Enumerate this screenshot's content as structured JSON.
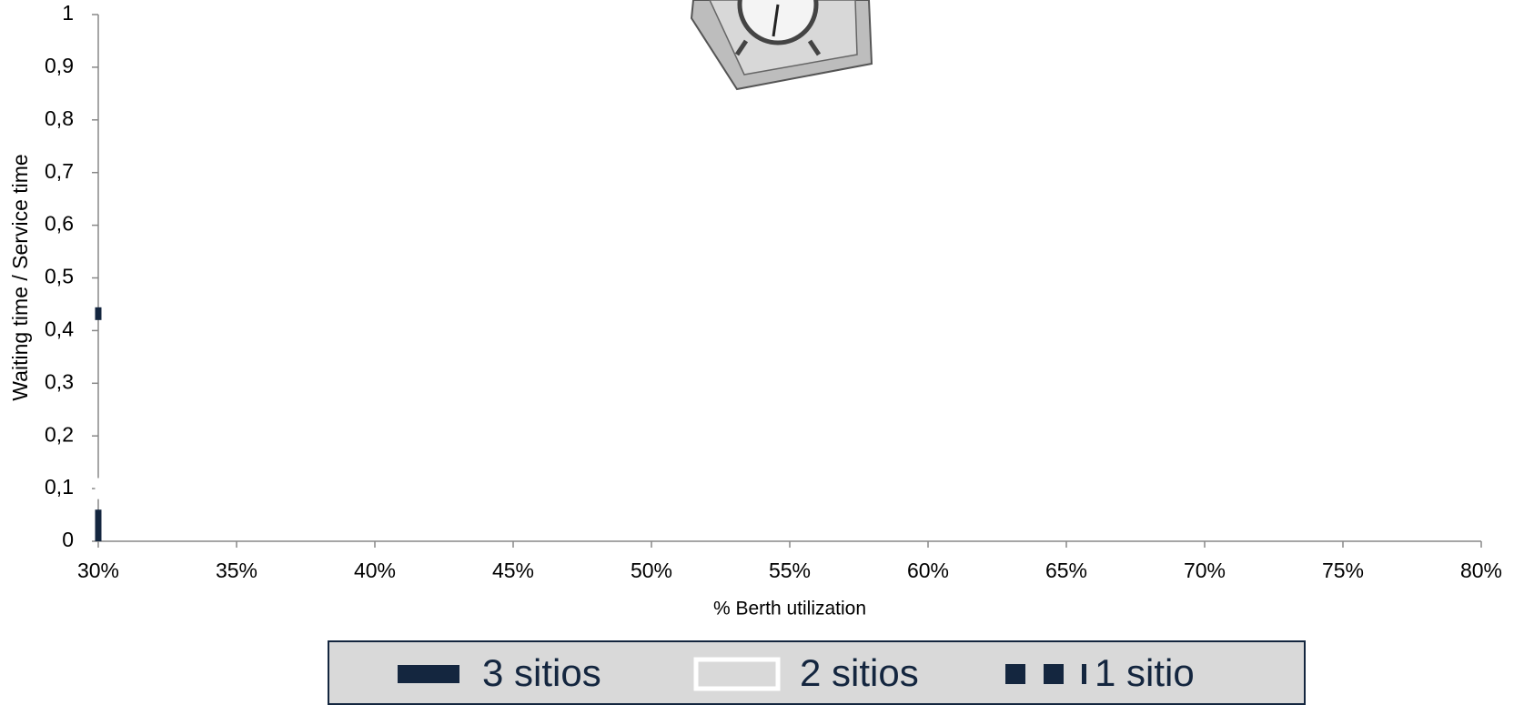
{
  "chart_data": {
    "type": "line",
    "x_label": "% Berth utilization",
    "y_label": "Waiting time / Service time",
    "x": [
      30,
      30
    ],
    "series": [
      {
        "name": "3 sitios",
        "color": "#14263f",
        "dash": "solid",
        "values": [
          0,
          0.06
        ]
      },
      {
        "name": "2 sitios",
        "color": "#ffffff",
        "dash": "solid",
        "values": [
          0.08,
          0.12
        ]
      },
      {
        "name": "1 sitio",
        "color": "#14263f",
        "dash": "dashed",
        "values": [
          0.42,
          0.45
        ]
      }
    ],
    "xlim": [
      30,
      80
    ],
    "xticks": [
      {
        "value": 30,
        "label": "30%"
      },
      {
        "value": 35,
        "label": "35%"
      },
      {
        "value": 40,
        "label": "40%"
      },
      {
        "value": 45,
        "label": "45%"
      },
      {
        "value": 50,
        "label": "50%"
      },
      {
        "value": 55,
        "label": "55%"
      },
      {
        "value": 60,
        "label": "60%"
      },
      {
        "value": 65,
        "label": "65%"
      },
      {
        "value": 70,
        "label": "70%"
      },
      {
        "value": 75,
        "label": "75%"
      },
      {
        "value": 80,
        "label": "80%"
      }
    ],
    "ylim": [
      0,
      1
    ],
    "yticks": [
      0,
      {
        "value": 0.1,
        "label": "0,1"
      },
      {
        "value": 0.2,
        "label": "0,2"
      },
      {
        "value": 0.3,
        "label": "0,3"
      },
      {
        "value": 0.4,
        "label": "0,4"
      },
      {
        "value": 0.5,
        "label": "0,5"
      },
      {
        "value": 0.6,
        "label": "0,6"
      },
      {
        "value": 0.7,
        "label": "0,7"
      },
      {
        "value": 0.8,
        "label": "0,8"
      },
      {
        "value": 0.9,
        "label": "0,9"
      },
      1
    ],
    "grid": false,
    "legend": "bottom"
  }
}
